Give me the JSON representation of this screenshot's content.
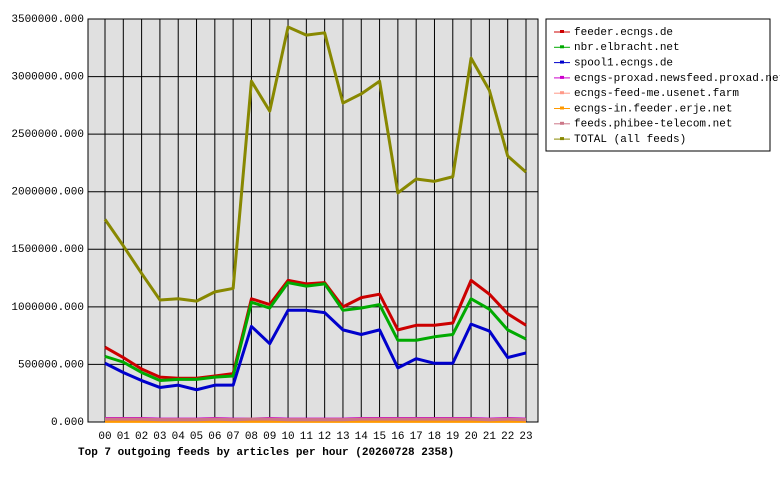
{
  "chart_data": {
    "type": "line",
    "title": "Top 7 outgoing feeds by articles per hour (20260728 2358)",
    "categories": [
      "00",
      "01",
      "02",
      "03",
      "04",
      "05",
      "06",
      "07",
      "08",
      "09",
      "10",
      "11",
      "12",
      "13",
      "14",
      "15",
      "16",
      "17",
      "18",
      "19",
      "20",
      "21",
      "22",
      "23"
    ],
    "ylim": [
      0,
      3500000
    ],
    "yticks": [
      {
        "value": 0,
        "label": "0.000"
      },
      {
        "value": 500000,
        "label": "500000.000"
      },
      {
        "value": 1000000,
        "label": "1000000.000"
      },
      {
        "value": 1500000,
        "label": "1500000.000"
      },
      {
        "value": 2000000,
        "label": "2000000.000"
      },
      {
        "value": 2500000,
        "label": "2500000.000"
      },
      {
        "value": 3000000,
        "label": "3000000.000"
      },
      {
        "value": 3500000,
        "label": "3500000.000"
      }
    ],
    "grid": true,
    "legend": "right",
    "series": [
      {
        "name": "feeder.ecngs.de",
        "color": "#cc0000",
        "values": [
          650000,
          560000,
          460000,
          390000,
          380000,
          380000,
          400000,
          420000,
          1070000,
          1020000,
          1230000,
          1200000,
          1210000,
          1000000,
          1080000,
          1110000,
          800000,
          840000,
          840000,
          860000,
          1230000,
          1110000,
          940000,
          840000
        ]
      },
      {
        "name": "nbr.elbracht.net",
        "color": "#00aa00",
        "values": [
          570000,
          520000,
          430000,
          360000,
          370000,
          370000,
          390000,
          400000,
          1040000,
          990000,
          1210000,
          1180000,
          1200000,
          970000,
          990000,
          1020000,
          710000,
          710000,
          740000,
          760000,
          1070000,
          980000,
          800000,
          720000
        ]
      },
      {
        "name": "spool1.ecngs.de",
        "color": "#0000cc",
        "values": [
          510000,
          430000,
          360000,
          300000,
          320000,
          280000,
          320000,
          320000,
          830000,
          680000,
          970000,
          970000,
          950000,
          800000,
          760000,
          800000,
          470000,
          550000,
          510000,
          510000,
          850000,
          790000,
          560000,
          600000
        ]
      },
      {
        "name": "ecngs-proxad.newsfeed.proxad.net",
        "color": "#cc00cc",
        "values": [
          30000,
          30000,
          30000,
          25000,
          25000,
          25000,
          30000,
          25000,
          25000,
          30000,
          25000,
          25000,
          25000,
          25000,
          30000,
          30000,
          30000,
          30000,
          30000,
          30000,
          30000,
          25000,
          30000,
          25000
        ]
      },
      {
        "name": "ecngs-feed-me.usenet.farm",
        "color": "#ff9988",
        "values": [
          20000,
          20000,
          20000,
          20000,
          20000,
          20000,
          20000,
          20000,
          20000,
          20000,
          20000,
          20000,
          20000,
          20000,
          20000,
          20000,
          20000,
          20000,
          20000,
          20000,
          20000,
          20000,
          20000,
          20000
        ]
      },
      {
        "name": "ecngs-in.feeder.erje.net",
        "color": "#ff9900",
        "values": [
          5000,
          5000,
          5000,
          5000,
          5000,
          5000,
          5000,
          5000,
          5000,
          5000,
          5000,
          5000,
          5000,
          5000,
          5000,
          5000,
          5000,
          5000,
          5000,
          5000,
          5000,
          5000,
          5000,
          5000
        ]
      },
      {
        "name": "feeds.phibee-telecom.net",
        "color": "#cc7788",
        "values": [
          25000,
          25000,
          25000,
          20000,
          20000,
          20000,
          25000,
          20000,
          25000,
          25000,
          20000,
          20000,
          20000,
          20000,
          25000,
          25000,
          25000,
          25000,
          25000,
          25000,
          25000,
          20000,
          25000,
          20000
        ]
      },
      {
        "name": "TOTAL (all feeds)",
        "color": "#888800",
        "values": [
          1760000,
          1530000,
          1290000,
          1060000,
          1070000,
          1050000,
          1130000,
          1160000,
          2960000,
          2700000,
          3430000,
          3360000,
          3380000,
          2770000,
          2850000,
          2960000,
          1990000,
          2110000,
          2090000,
          2130000,
          3160000,
          2880000,
          2310000,
          2170000
        ]
      }
    ]
  }
}
